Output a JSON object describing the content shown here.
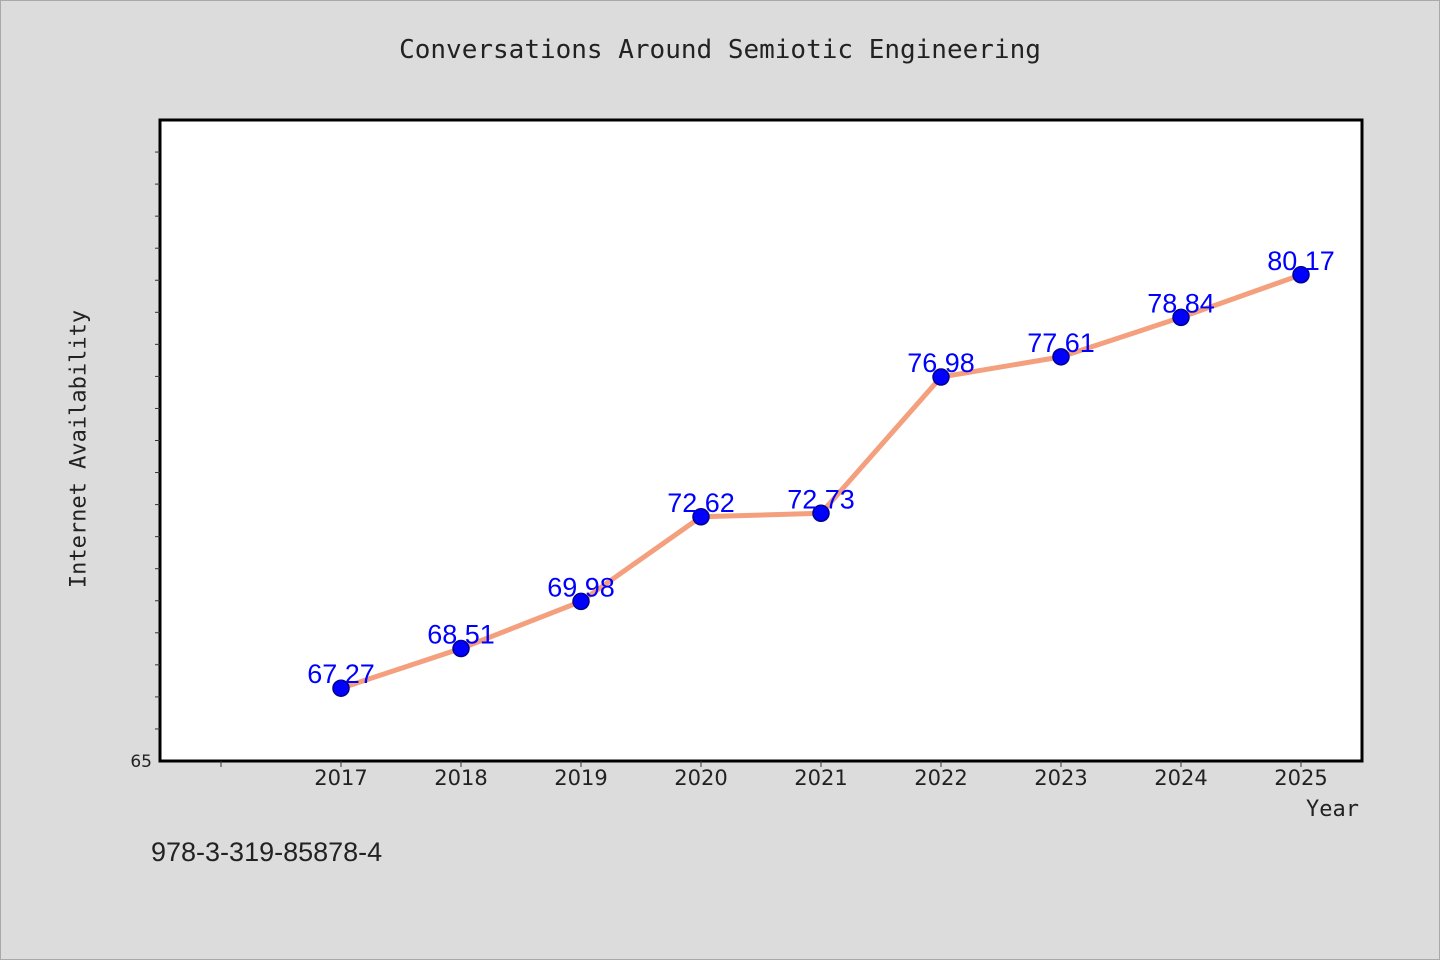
{
  "chart_data": {
    "type": "line",
    "title": "Conversations Around Semiotic Engineering",
    "xlabel": "Year",
    "ylabel": "Internet Availability",
    "categories": [
      "2017",
      "2018",
      "2019",
      "2020",
      "2021",
      "2022",
      "2023",
      "2024",
      "2025"
    ],
    "series": [
      {
        "values": [
          67.27,
          68.51,
          69.98,
          72.62,
          72.73,
          76.98,
          77.61,
          78.84,
          80.17
        ]
      }
    ],
    "y_tick_labels": [
      "65"
    ],
    "ylim": [
      65,
      85
    ],
    "grid": false,
    "line_color": "#f4a07e",
    "marker_color": "#0000ff",
    "label_color": "#0000ff"
  },
  "footer": {
    "isbn": "978-3-319-85878-4"
  }
}
